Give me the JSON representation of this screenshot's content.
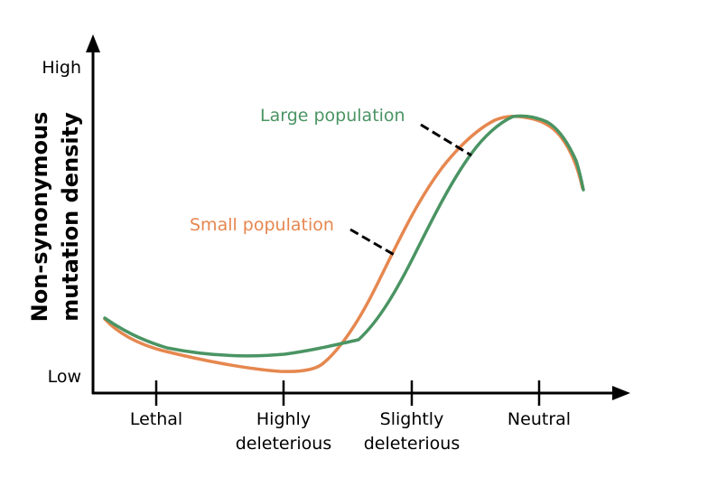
{
  "chart_data": {
    "type": "line",
    "ylabel_lines": [
      "Non-synonymous",
      "mutation density"
    ],
    "y_ticks": [
      "High",
      "Low"
    ],
    "x_categories": [
      {
        "lines": [
          "Lethal"
        ]
      },
      {
        "lines": [
          "Highly",
          "deleterious"
        ]
      },
      {
        "lines": [
          "Slightly",
          "deleterious"
        ]
      },
      {
        "lines": [
          "Neutral"
        ]
      }
    ],
    "series": [
      {
        "name": "Large population",
        "color": "#4a9463"
      },
      {
        "name": "Small population",
        "color": "#e6874f"
      }
    ]
  },
  "colors": {
    "axis": "#000000",
    "large": "#4a9463",
    "small": "#e6874f"
  }
}
